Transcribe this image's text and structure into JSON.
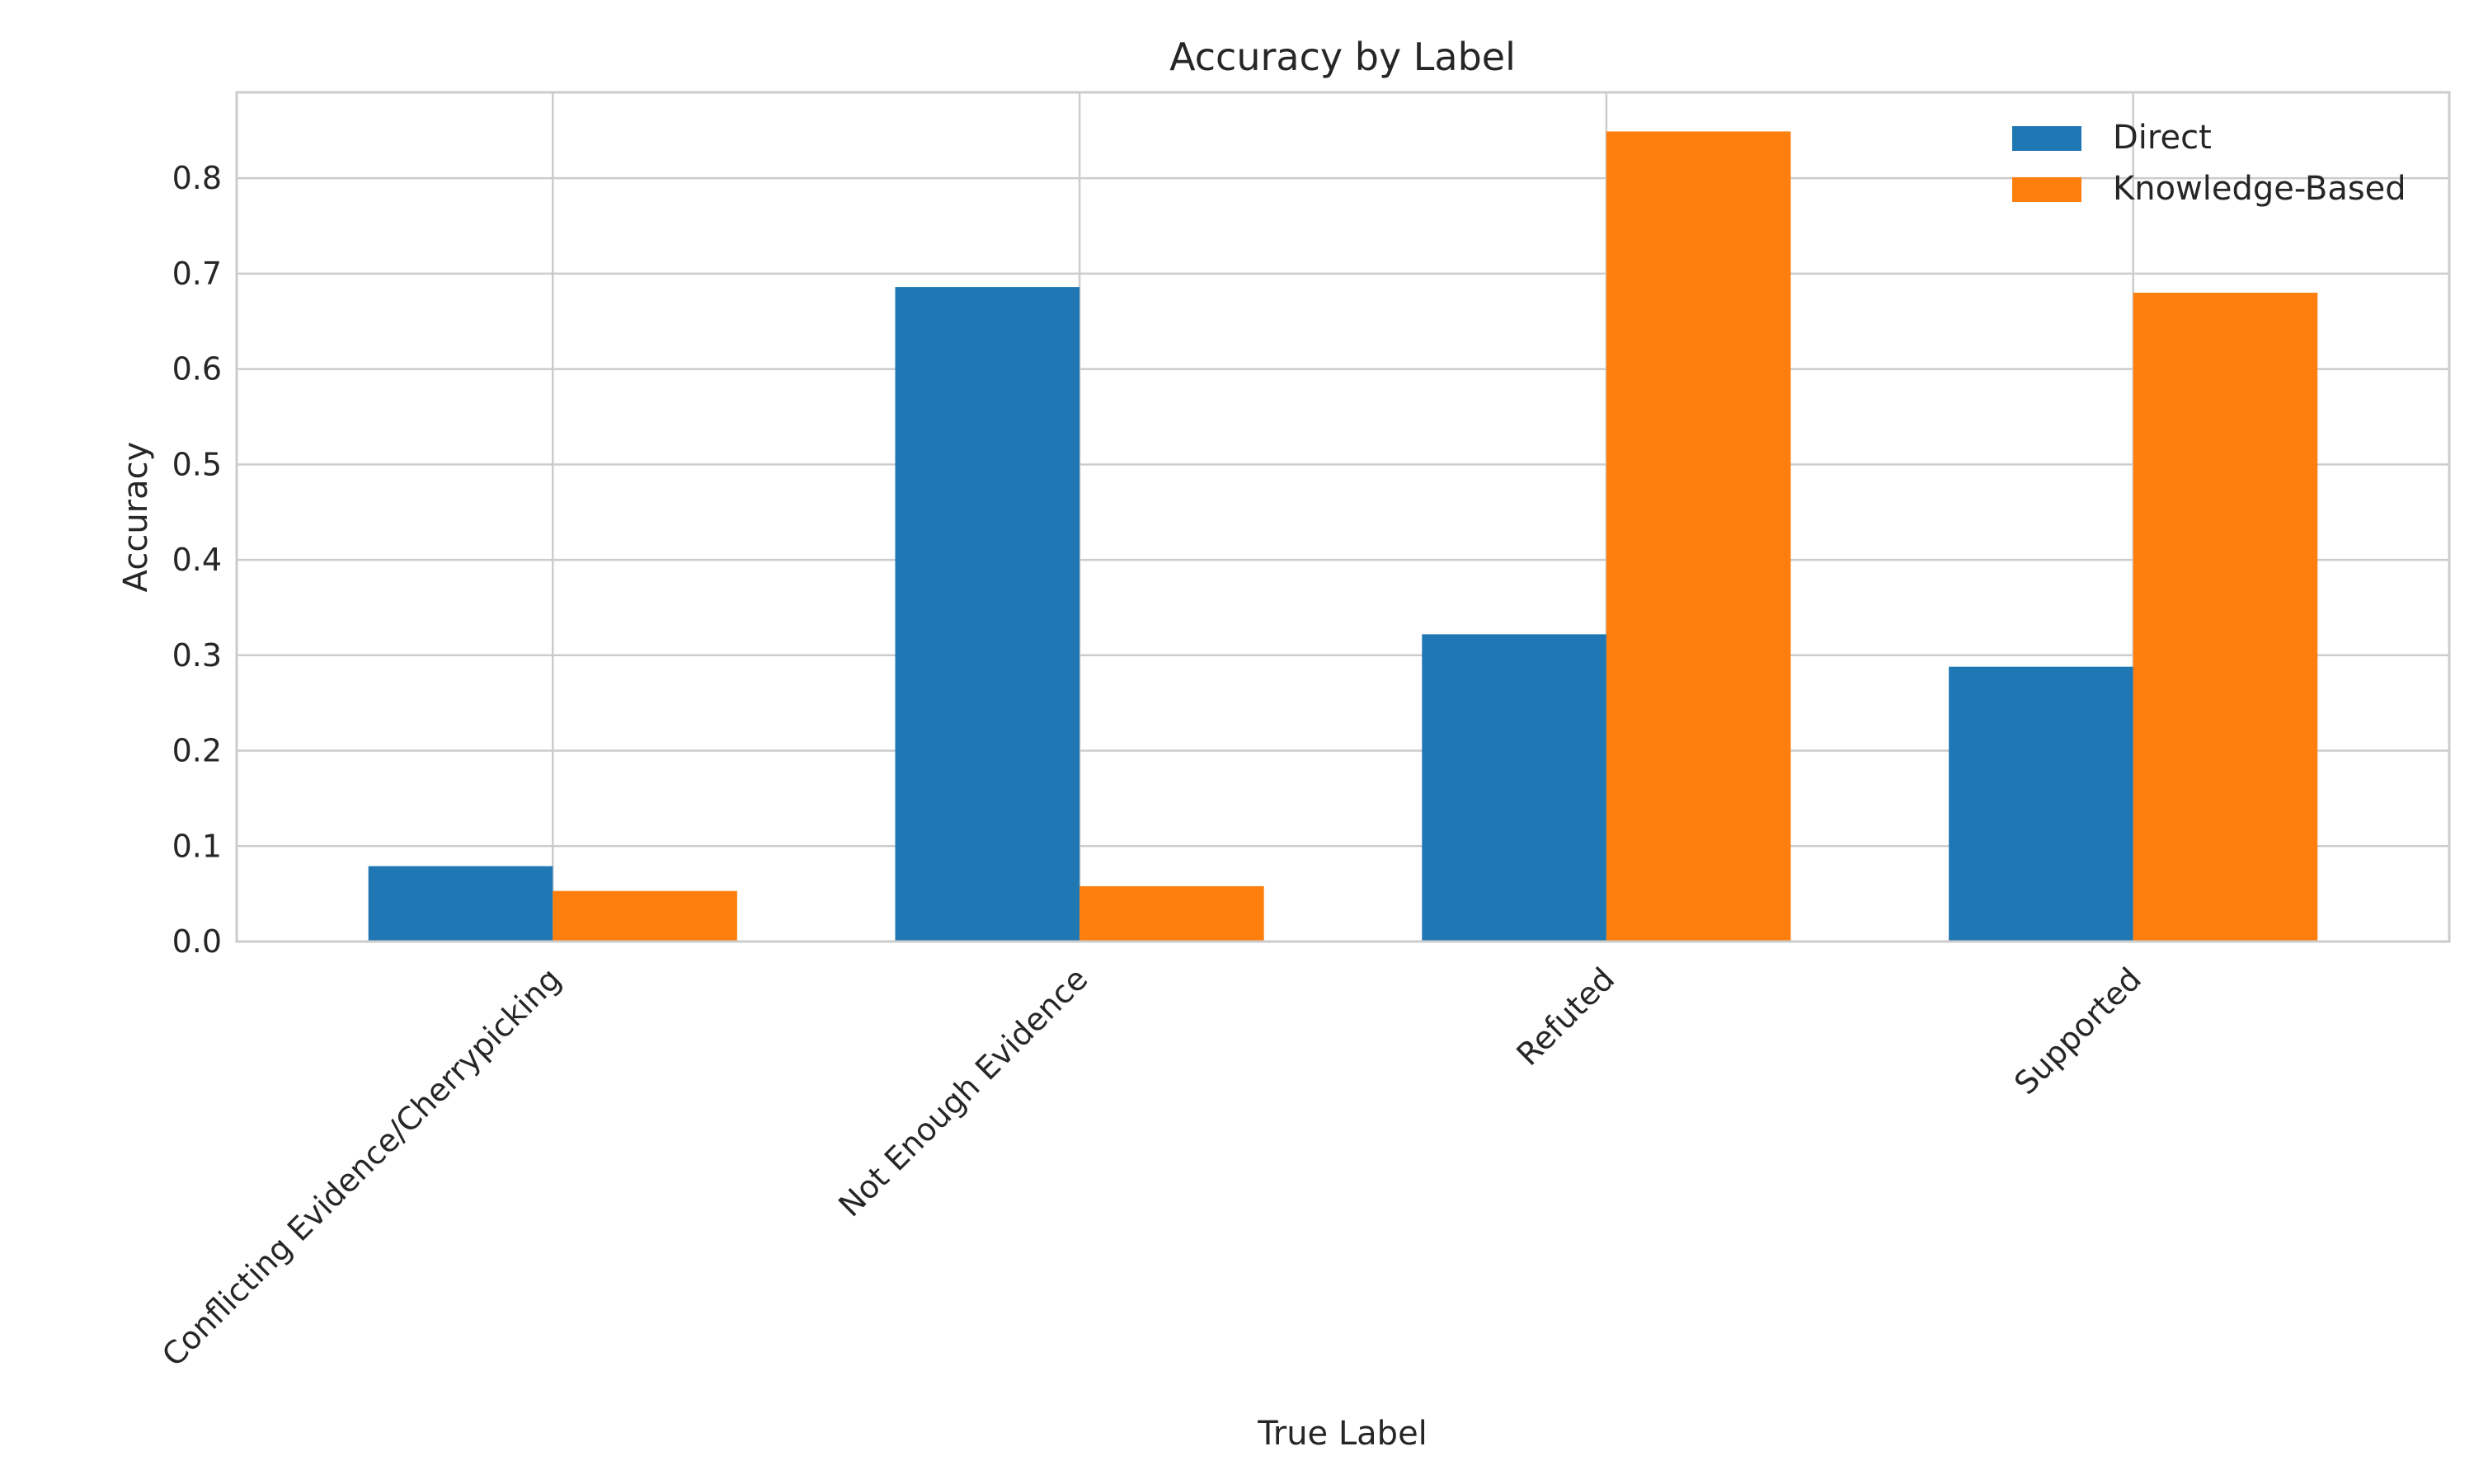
{
  "chart_data": {
    "type": "bar",
    "title": "Accuracy by Label",
    "xlabel": "True Label",
    "ylabel": "Accuracy",
    "categories": [
      "Conflicting Evidence/Cherrypicking",
      "Not Enough Evidence",
      "Refuted",
      "Supported"
    ],
    "series": [
      {
        "name": "Direct",
        "color": "#1f77b4",
        "values": [
          0.079,
          0.686,
          0.322,
          0.288
        ]
      },
      {
        "name": "Knowledge-Based",
        "color": "#ff7f0e",
        "values": [
          0.053,
          0.058,
          0.849,
          0.68
        ]
      }
    ],
    "ylim": [
      0,
      0.89
    ],
    "yticks": [
      0.0,
      0.1,
      0.2,
      0.3,
      0.4,
      0.5,
      0.6,
      0.7,
      0.8
    ],
    "ytick_labels": [
      "0.0",
      "0.1",
      "0.2",
      "0.3",
      "0.4",
      "0.5",
      "0.6",
      "0.7",
      "0.8"
    ],
    "grid": true,
    "legend_position": "top-right"
  }
}
